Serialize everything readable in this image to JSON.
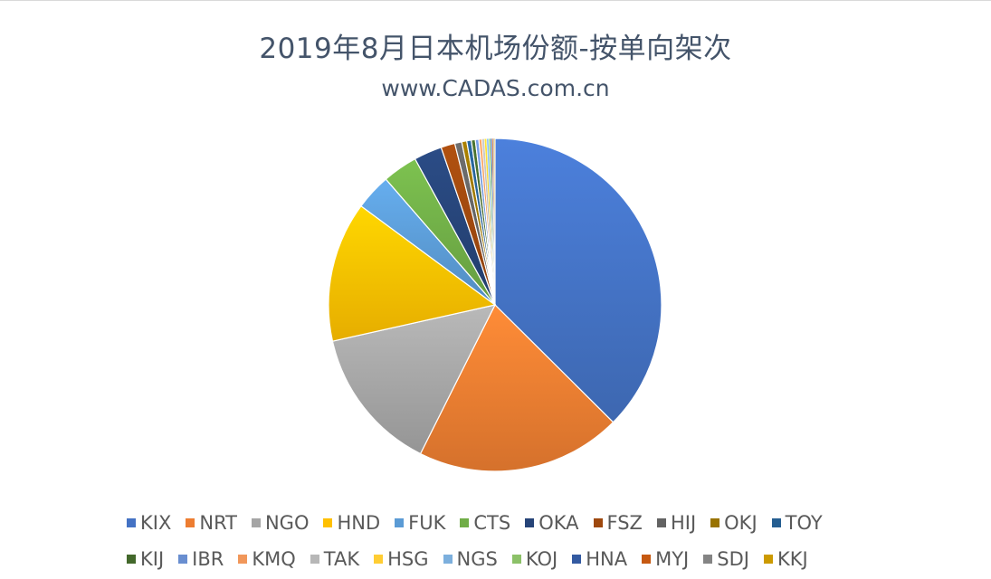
{
  "chart_data": {
    "type": "pie",
    "title": "2019年8月日本机场份额-按单向架次",
    "subtitle": "www.CADAS.com.cn",
    "legend_position": "bottom",
    "slices": [
      {
        "name": "KIX",
        "value": 38.5,
        "color": "#4472c4"
      },
      {
        "name": "NRT",
        "value": 20.5,
        "color": "#ed7d31"
      },
      {
        "name": "NGO",
        "value": 14.5,
        "color": "#a5a5a5"
      },
      {
        "name": "HND",
        "value": 14.0,
        "color": "#ffc000"
      },
      {
        "name": "FUK",
        "value": 3.6,
        "color": "#5b9bd5"
      },
      {
        "name": "CTS",
        "value": 3.5,
        "color": "#70ad47"
      },
      {
        "name": "OKA",
        "value": 2.8,
        "color": "#264478"
      },
      {
        "name": "FSZ",
        "value": 1.4,
        "color": "#9e480e"
      },
      {
        "name": "HIJ",
        "value": 0.7,
        "color": "#636363"
      },
      {
        "name": "OKJ",
        "value": 0.5,
        "color": "#997300"
      },
      {
        "name": "TOY",
        "value": 0.45,
        "color": "#255e91"
      },
      {
        "name": "KIJ",
        "value": 0.4,
        "color": "#43682b"
      },
      {
        "name": "IBR",
        "value": 0.35,
        "color": "#698ed0"
      },
      {
        "name": "KMQ",
        "value": 0.3,
        "color": "#f1975a"
      },
      {
        "name": "TAK",
        "value": 0.25,
        "color": "#b7b7b7"
      },
      {
        "name": "HSG",
        "value": 0.22,
        "color": "#ffcd33"
      },
      {
        "name": "NGS",
        "value": 0.2,
        "color": "#7cafdd"
      },
      {
        "name": "KOJ",
        "value": 0.18,
        "color": "#8cc168"
      },
      {
        "name": "HNA",
        "value": 0.15,
        "color": "#335aa1"
      },
      {
        "name": "MYJ",
        "value": 0.12,
        "color": "#c65911"
      },
      {
        "name": "SDJ",
        "value": 0.1,
        "color": "#848484"
      },
      {
        "name": "KKJ",
        "value": 0.08,
        "color": "#cc9a00"
      }
    ]
  }
}
